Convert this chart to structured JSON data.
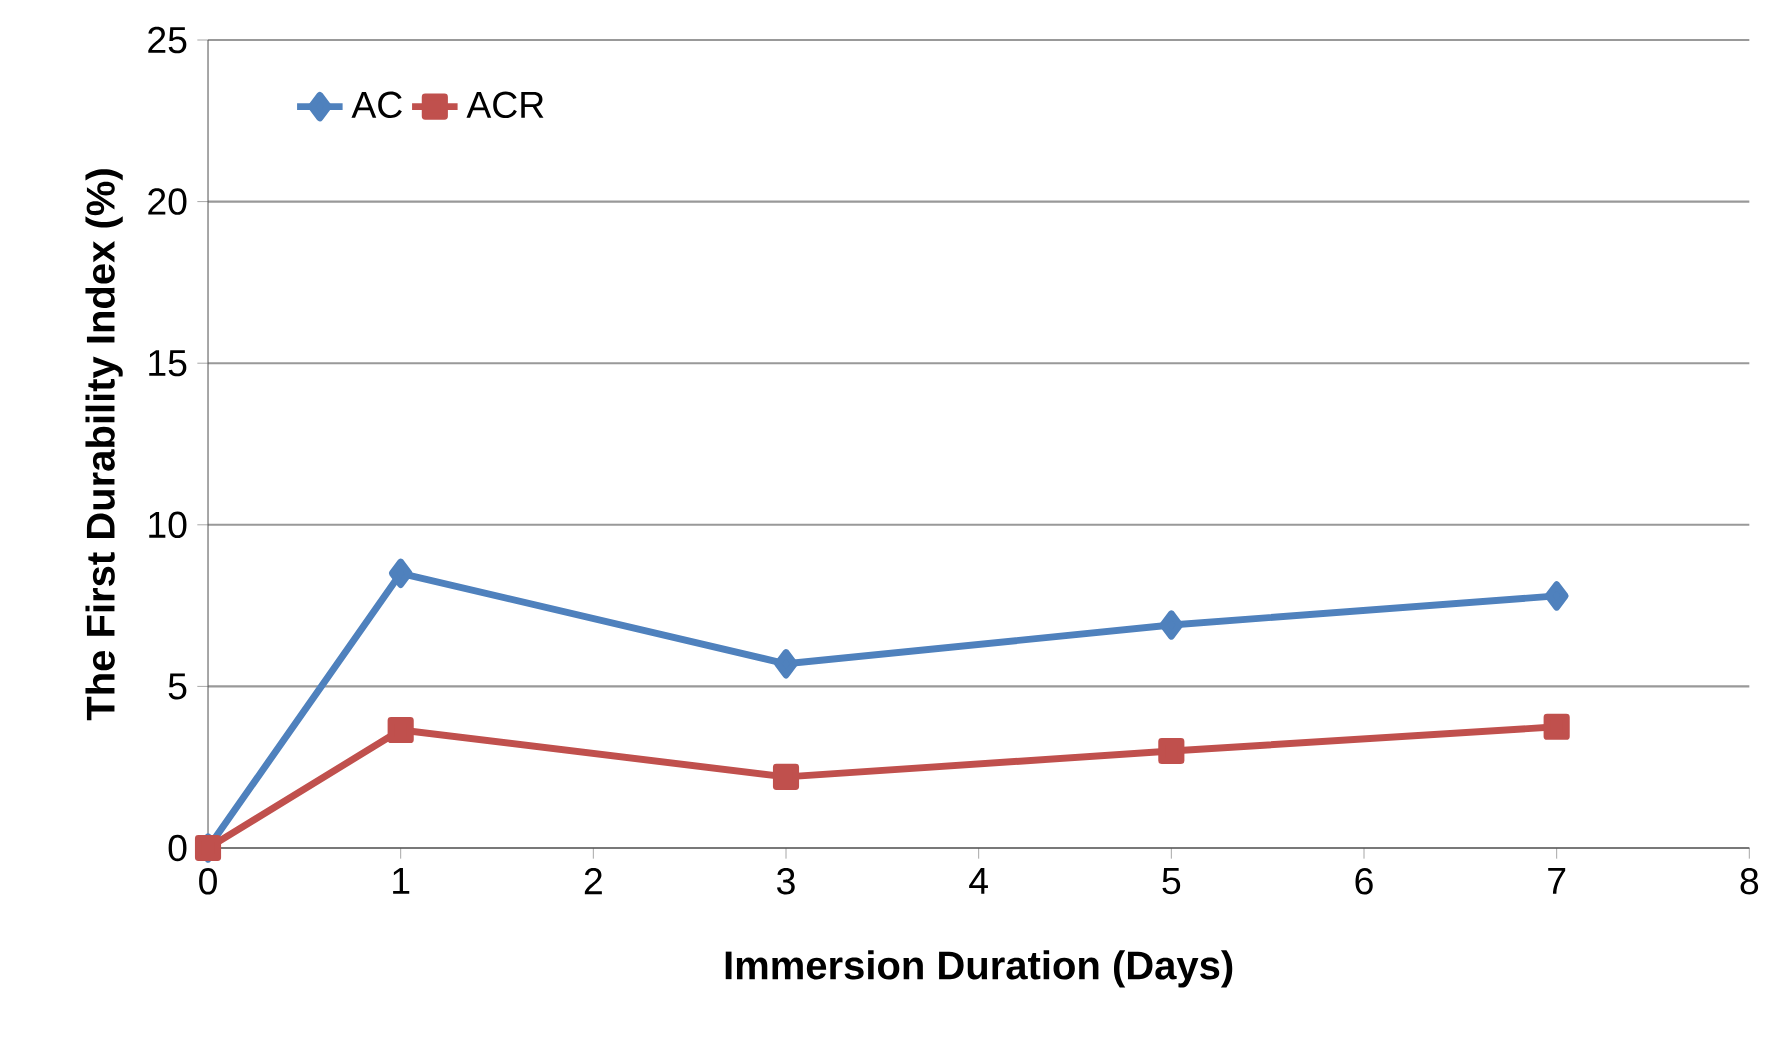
{
  "chart_data": {
    "type": "line",
    "xlabel": "Immersion Duration  (Days)",
    "ylabel": "The First Durability Index (%)",
    "x": [
      0,
      1,
      3,
      5,
      7
    ],
    "series": [
      {
        "name": "AC",
        "color": "#4f81bd",
        "marker": "diamond",
        "values": [
          0,
          8.5,
          5.7,
          6.9,
          7.8
        ]
      },
      {
        "name": "ACR",
        "color": "#c0504d",
        "marker": "square",
        "values": [
          0,
          3.65,
          2.2,
          3.0,
          3.75
        ]
      }
    ],
    "xlim": [
      0,
      8
    ],
    "xticks": [
      0,
      1,
      2,
      3,
      4,
      5,
      6,
      7,
      8
    ],
    "ylim": [
      0,
      25
    ],
    "yticks": [
      0,
      5,
      10,
      15,
      20,
      25
    ],
    "grid": "y",
    "legend": "top left",
    "line_style": "solid"
  }
}
